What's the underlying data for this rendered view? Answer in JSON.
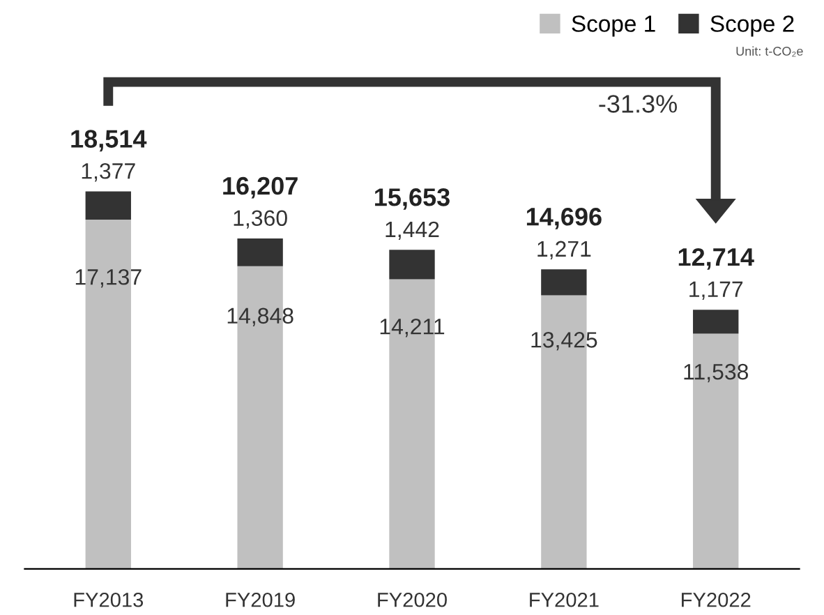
{
  "chart_data": {
    "type": "bar",
    "stacked": true,
    "categories": [
      "FY2013",
      "FY2019",
      "FY2020",
      "FY2021",
      "FY2022"
    ],
    "series": [
      {
        "name": "Scope 1",
        "color": "#c0c0c0",
        "values": [
          17137,
          14848,
          14211,
          13425,
          11538
        ],
        "value_labels": [
          "17,137",
          "14,848",
          "14,211",
          "13,425",
          "11,538"
        ]
      },
      {
        "name": "Scope 2",
        "color": "#333333",
        "values": [
          1377,
          1360,
          1442,
          1271,
          1177
        ],
        "value_labels": [
          "1,377",
          "1,360",
          "1,442",
          "1,271",
          "1,177"
        ]
      }
    ],
    "totals": [
      "18,514",
      "16,207",
      "15,653",
      "14,696",
      "12,714"
    ],
    "annotations": [
      "-31.3%",
      "Unit: t-CO₂e"
    ],
    "legend": "top right",
    "grid": false
  }
}
